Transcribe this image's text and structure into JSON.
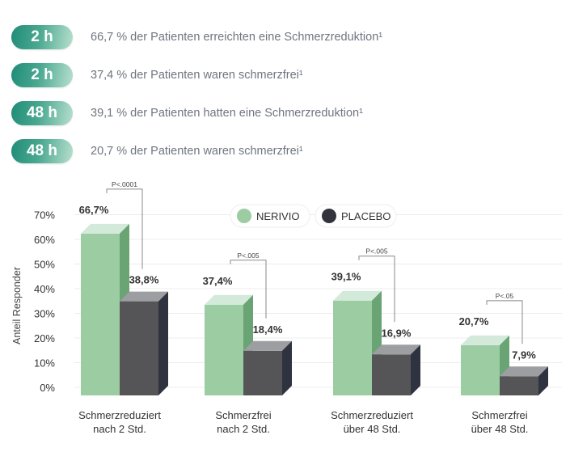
{
  "highlights": [
    {
      "badge": "2 h",
      "text": "66,7 % der Patienten erreichten eine Schmerzreduktion¹"
    },
    {
      "badge": "2 h",
      "text": "37,4 % der Patienten waren schmerzfrei¹"
    },
    {
      "badge": "48 h",
      "text": "39,1 % der Patienten hatten eine Schmerzreduktion¹"
    },
    {
      "badge": "48 h",
      "text": "20,7 % der Patienten waren schmerzfrei¹"
    }
  ],
  "chart_data": {
    "type": "bar",
    "title": "",
    "ylabel": "Anteil Responder",
    "xlabel": "",
    "ylim": [
      0,
      70
    ],
    "yticks": [
      "0%",
      "10%",
      "20%",
      "30%",
      "40%",
      "50%",
      "60%",
      "70%"
    ],
    "categories": [
      [
        "Schmerzreduziert",
        "nach 2 Std."
      ],
      [
        "Schmerzfrei",
        "nach 2 Std."
      ],
      [
        "Schmerzreduziert",
        "über 48 Std."
      ],
      [
        "Schmerzfrei",
        "über 48 Std."
      ]
    ],
    "series": [
      {
        "name": "NERIVIO",
        "color": "#9ccca2",
        "values": [
          66.7,
          37.4,
          39.1,
          20.7
        ],
        "labels": [
          "66,7%",
          "37,4%",
          "39,1%",
          "20,7%"
        ]
      },
      {
        "name": "PLACEBO",
        "color": "#555557",
        "values": [
          38.8,
          18.4,
          16.9,
          7.9
        ],
        "labels": [
          "38,8%",
          "18,4%",
          "16,9%",
          "7,9%"
        ]
      }
    ],
    "pvalues": [
      "P<.0001",
      "P<.005",
      "P<.005",
      "P<.05"
    ],
    "legend": "top-center",
    "grid": true
  }
}
